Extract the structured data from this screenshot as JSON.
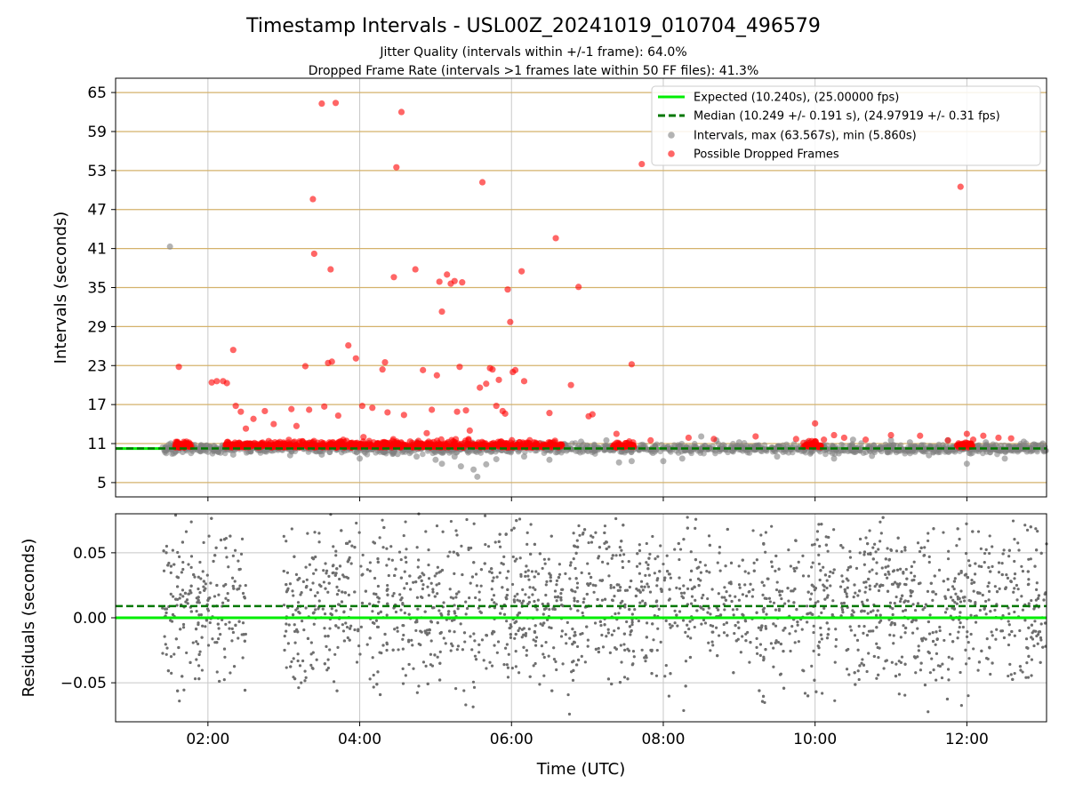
{
  "figure": {
    "title": "Timestamp Intervals - USL00Z_20241019_010704_496579",
    "subtitle1": "Jitter Quality (intervals within +/-1 frame): 64.0%",
    "subtitle2": "Dropped Frame Rate (intervals >1 frames late within 50 FF files): 41.3%"
  },
  "colors": {
    "expected": "#00ee00",
    "median": "#007700",
    "intervals": "#808080",
    "dropped": "#ff0000",
    "band": "#d4b26b",
    "grid": "#c8c8c8"
  },
  "chart_data": [
    {
      "type": "scatter",
      "ylabel": "Intervals (seconds)",
      "x_range": [
        "00:47",
        "13:03"
      ],
      "ylim": [
        2.8,
        67.2
      ],
      "y_ticks": [
        5,
        11,
        17,
        23,
        29,
        35,
        41,
        47,
        53,
        59,
        65
      ],
      "y_tick_labels": [
        "5",
        "11",
        "17",
        "23",
        "29",
        "35",
        "41",
        "47",
        "53",
        "59",
        "65"
      ],
      "grid": true,
      "legend_position": "top-right",
      "legend": [
        "Expected (10.240s), (25.00000 fps)",
        "Median (10.249 +/- 0.191 s), (24.97919 +/- 0.31 fps)",
        "Intervals, max (63.567s), min (5.860s)",
        "Possible Dropped Frames"
      ],
      "series": [
        {
          "name": "Expected (10.240s), (25.00000 fps)",
          "type": "hline",
          "y": 10.24
        },
        {
          "name": "Median (10.249 +/- 0.191 s), (24.97919 +/- 0.31 fps)",
          "type": "hline",
          "y": 10.249
        },
        {
          "name": "Intervals, max (63.567s), min (5.860s)",
          "points": [
            [
              "01:30",
              41.3
            ],
            [
              "01:33",
              9.5
            ],
            [
              "01:40",
              9.7
            ],
            [
              "02:10",
              9.6
            ],
            [
              "02:20",
              9.3
            ],
            [
              "02:45",
              9.8
            ],
            [
              "03:05",
              9.2
            ],
            [
              "03:30",
              9.3
            ],
            [
              "04:00",
              8.7
            ],
            [
              "04:30",
              9.4
            ],
            [
              "04:45",
              9.0
            ],
            [
              "05:00",
              8.5
            ],
            [
              "05:05",
              7.9
            ],
            [
              "05:15",
              9.0
            ],
            [
              "05:20",
              7.5
            ],
            [
              "05:30",
              7.0
            ],
            [
              "05:33",
              5.9
            ],
            [
              "05:40",
              7.8
            ],
            [
              "05:48",
              8.6
            ],
            [
              "06:10",
              9.0
            ],
            [
              "06:30",
              8.5
            ],
            [
              "06:55",
              11.3
            ],
            [
              "07:15",
              11.5
            ],
            [
              "07:25",
              8.1
            ],
            [
              "07:35",
              8.3
            ],
            [
              "08:00",
              8.3
            ],
            [
              "08:15",
              8.7
            ],
            [
              "08:30",
              12.1
            ],
            [
              "08:42",
              11.5
            ],
            [
              "09:00",
              11.2
            ],
            [
              "09:30",
              9.0
            ],
            [
              "10:15",
              8.7
            ],
            [
              "10:30",
              11.6
            ],
            [
              "10:45",
              9.1
            ],
            [
              "11:00",
              11.5
            ],
            [
              "11:15",
              11.2
            ],
            [
              "11:30",
              9.2
            ],
            [
              "11:45",
              11.5
            ],
            [
              "12:00",
              7.9
            ],
            [
              "12:15",
              11.2
            ],
            [
              "12:30",
              8.7
            ],
            [
              "12:45",
              11.3
            ],
            [
              "13:00",
              11.0
            ]
          ]
        },
        {
          "name": "Possible Dropped Frames",
          "points": [
            [
              "01:37",
              22.8
            ],
            [
              "02:03",
              20.4
            ],
            [
              "02:07",
              20.6
            ],
            [
              "02:12",
              20.6
            ],
            [
              "02:15",
              20.3
            ],
            [
              "02:20",
              25.4
            ],
            [
              "02:22",
              16.8
            ],
            [
              "02:26",
              15.9
            ],
            [
              "02:30",
              13.3
            ],
            [
              "02:36",
              14.8
            ],
            [
              "02:45",
              16.0
            ],
            [
              "02:52",
              14.0
            ],
            [
              "03:06",
              16.3
            ],
            [
              "03:10",
              13.7
            ],
            [
              "03:17",
              22.9
            ],
            [
              "03:20",
              16.2
            ],
            [
              "03:23",
              48.6
            ],
            [
              "03:24",
              40.2
            ],
            [
              "03:30",
              63.3
            ],
            [
              "03:32",
              16.7
            ],
            [
              "03:35",
              23.4
            ],
            [
              "03:37",
              37.8
            ],
            [
              "03:38",
              23.6
            ],
            [
              "03:41",
              63.4
            ],
            [
              "03:43",
              15.3
            ],
            [
              "03:51",
              26.1
            ],
            [
              "03:57",
              24.1
            ],
            [
              "04:02",
              16.8
            ],
            [
              "04:03",
              12.0
            ],
            [
              "04:10",
              16.5
            ],
            [
              "04:18",
              22.4
            ],
            [
              "04:20",
              23.5
            ],
            [
              "04:22",
              15.8
            ],
            [
              "04:27",
              36.6
            ],
            [
              "04:29",
              53.5
            ],
            [
              "04:33",
              62.0
            ],
            [
              "04:35",
              15.4
            ],
            [
              "04:44",
              37.8
            ],
            [
              "04:50",
              22.3
            ],
            [
              "04:53",
              12.6
            ],
            [
              "04:57",
              16.2
            ],
            [
              "05:01",
              21.5
            ],
            [
              "05:03",
              35.9
            ],
            [
              "05:05",
              31.3
            ],
            [
              "05:09",
              37.0
            ],
            [
              "05:12",
              35.6
            ],
            [
              "05:15",
              36.0
            ],
            [
              "05:17",
              15.9
            ],
            [
              "05:19",
              22.8
            ],
            [
              "05:21",
              35.8
            ],
            [
              "05:24",
              16.1
            ],
            [
              "05:27",
              13.0
            ],
            [
              "05:35",
              19.6
            ],
            [
              "05:37",
              51.2
            ],
            [
              "05:40",
              20.2
            ],
            [
              "05:43",
              22.6
            ],
            [
              "05:45",
              22.4
            ],
            [
              "05:48",
              16.8
            ],
            [
              "05:50",
              20.8
            ],
            [
              "05:53",
              16.0
            ],
            [
              "05:55",
              15.6
            ],
            [
              "05:57",
              34.7
            ],
            [
              "05:59",
              29.7
            ],
            [
              "06:01",
              22.0
            ],
            [
              "06:03",
              22.3
            ],
            [
              "06:08",
              37.5
            ],
            [
              "06:10",
              20.6
            ],
            [
              "06:30",
              15.7
            ],
            [
              "06:35",
              42.6
            ],
            [
              "06:47",
              20.0
            ],
            [
              "06:53",
              35.1
            ],
            [
              "07:01",
              15.2
            ],
            [
              "07:04",
              15.5
            ],
            [
              "07:23",
              12.5
            ],
            [
              "07:35",
              23.2
            ],
            [
              "07:43",
              54.0
            ],
            [
              "07:50",
              11.5
            ],
            [
              "08:20",
              11.9
            ],
            [
              "08:40",
              11.7
            ],
            [
              "09:13",
              12.1
            ],
            [
              "09:45",
              11.7
            ],
            [
              "10:00",
              14.1
            ],
            [
              "10:07",
              11.6
            ],
            [
              "10:15",
              12.3
            ],
            [
              "10:23",
              11.9
            ],
            [
              "10:40",
              11.6
            ],
            [
              "11:00",
              12.3
            ],
            [
              "11:23",
              12.2
            ],
            [
              "11:45",
              11.5
            ],
            [
              "11:55",
              50.5
            ],
            [
              "12:00",
              12.5
            ],
            [
              "12:05",
              11.6
            ],
            [
              "12:13",
              12.2
            ],
            [
              "12:25",
              11.9
            ],
            [
              "12:35",
              11.8
            ]
          ]
        }
      ]
    },
    {
      "type": "scatter",
      "xlabel": "Time (UTC)",
      "ylabel": "Residuals (seconds)",
      "x_range": [
        "00:47",
        "13:03"
      ],
      "ylim": [
        -0.08,
        0.08
      ],
      "y_ticks": [
        -0.05,
        0.0,
        0.05
      ],
      "y_tick_labels": [
        "−0.05",
        "0.00",
        "0.05"
      ],
      "x_ticks": [
        "02:00",
        "04:00",
        "06:00",
        "08:00",
        "10:00",
        "12:00"
      ],
      "x_tick_labels": [
        "02:00",
        "04:00",
        "06:00",
        "08:00",
        "10:00",
        "12:00"
      ],
      "grid": true,
      "series": [
        {
          "name": "Expected",
          "type": "hline",
          "y": 0.0
        },
        {
          "name": "Median",
          "type": "hline",
          "y": 0.009
        },
        {
          "name": "Residuals",
          "x_start": "01:24",
          "x_end": "13:03",
          "gap": [
            "02:30",
            "03:00"
          ],
          "y_min": -0.08,
          "y_max": 0.08
        }
      ]
    }
  ]
}
